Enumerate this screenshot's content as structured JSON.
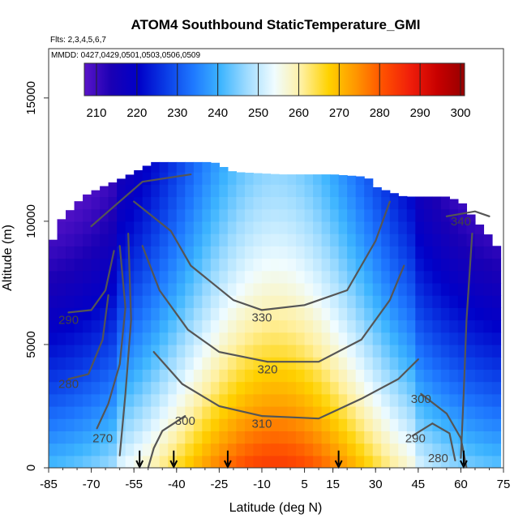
{
  "chart_data": {
    "type": "heatmap",
    "title": "ATOM4 Southbound StaticTemperature_GMI",
    "subtitle_flights": "Flts: 2,3,4,5,6,7",
    "subtitle_dates": "MMDD: 0427,0429,0501,0503,0506,0509",
    "xlabel": "Latitude (deg N)",
    "ylabel": "Altitude (m)",
    "xlim": [
      -85,
      75
    ],
    "ylim": [
      0,
      17000
    ],
    "x_ticks": [
      "-85",
      "-70",
      "-55",
      "-40",
      "-25",
      "-10",
      "5",
      "15",
      "30",
      "45",
      "60",
      "75"
    ],
    "x_tick_values": [
      -85,
      -70,
      -55,
      -40,
      -25,
      -10,
      5,
      15,
      30,
      45,
      60,
      75
    ],
    "y_ticks": [
      "0",
      "5000",
      "10000",
      "15000"
    ],
    "y_tick_values": [
      0,
      5000,
      10000,
      15000
    ],
    "colorbar": {
      "min": 207,
      "max": 301,
      "ticks": [
        "210",
        "220",
        "230",
        "240",
        "250",
        "260",
        "270",
        "280",
        "290",
        "300"
      ],
      "tick_values": [
        210,
        220,
        230,
        240,
        250,
        260,
        270,
        280,
        290,
        300
      ],
      "colors": [
        "#5a14c8",
        "#1a00b4",
        "#0000c8",
        "#0a3ce6",
        "#1e78ff",
        "#3cb4ff",
        "#a0dcff",
        "#f0fcff",
        "#fff0a0",
        "#ffd200",
        "#ff9600",
        "#ff5000",
        "#f01e0a",
        "#c80000",
        "#960000"
      ]
    },
    "data_extent": {
      "x_range": [
        -85,
        72
      ],
      "top_altitude_by_latitude": [
        [
          -85,
          8500
        ],
        [
          -83,
          9500
        ],
        [
          -80,
          10200
        ],
        [
          -77,
          10500
        ],
        [
          -73,
          11000
        ],
        [
          -66,
          11400
        ],
        [
          -58,
          11800
        ],
        [
          -48,
          12400
        ],
        [
          -27,
          12400
        ],
        [
          -20,
          12000
        ],
        [
          -3,
          11900
        ],
        [
          15,
          11900
        ],
        [
          27,
          11800
        ],
        [
          30,
          11400
        ],
        [
          40,
          11000
        ],
        [
          55,
          11000
        ],
        [
          60,
          10800
        ],
        [
          64,
          10200
        ],
        [
          67,
          9800
        ],
        [
          70,
          9400
        ],
        [
          72,
          9000
        ]
      ]
    },
    "contour_levels": [
      270,
      280,
      290,
      300,
      310,
      320,
      330,
      340
    ],
    "contour_labels": [
      {
        "text": "340",
        "lat": 60,
        "alt": 10000
      },
      {
        "text": "330",
        "lat": -10,
        "alt": 6100
      },
      {
        "text": "320",
        "lat": -8,
        "alt": 4000
      },
      {
        "text": "310",
        "lat": -10,
        "alt": 1800
      },
      {
        "text": "300",
        "lat": -37,
        "alt": 1900
      },
      {
        "text": "300",
        "lat": 46,
        "alt": 2800
      },
      {
        "text": "290",
        "lat": 44,
        "alt": 1200
      },
      {
        "text": "290",
        "lat": -78,
        "alt": 6000
      },
      {
        "text": "280",
        "lat": -78,
        "alt": 3400
      },
      {
        "text": "280",
        "lat": 52,
        "alt": 400
      },
      {
        "text": "270",
        "lat": -66,
        "alt": 1200
      }
    ],
    "flight_markers_lat": [
      -53,
      -41,
      -22,
      17,
      61
    ]
  }
}
